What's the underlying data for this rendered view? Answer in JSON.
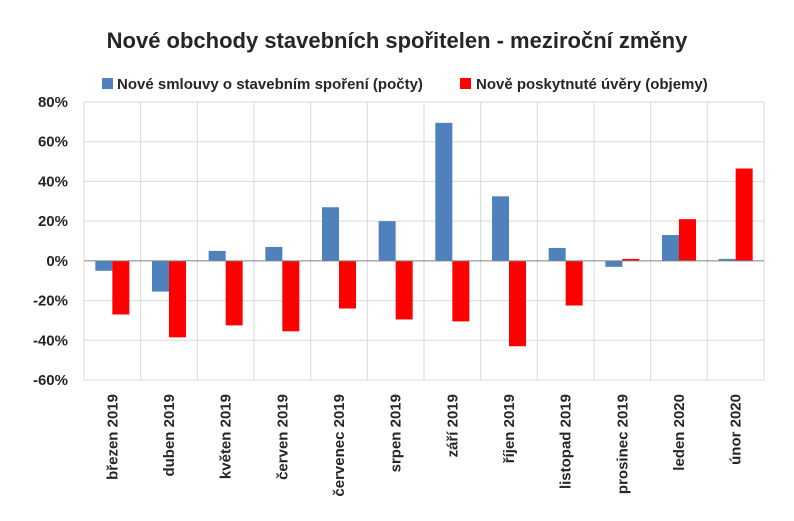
{
  "chart_data": {
    "type": "bar",
    "title": "Nové obchody stavebních spořitelen - meziroční změny",
    "xlabel": "",
    "ylabel": "",
    "categories": [
      "březen 2019",
      "duben 2019",
      "květen 2019",
      "červen 2019",
      "červenec 2019",
      "srpen 2019",
      "září 2019",
      "říjen 2019",
      "listopad 2019",
      "prosinec 2019",
      "leden 2020",
      "únor 2020"
    ],
    "series": [
      {
        "name": "Nové smlouvy o stavebním spoření (počty)",
        "color": "#4f81bd",
        "values": [
          -5,
          -15.5,
          5,
          7,
          27,
          20,
          69.5,
          32.5,
          6.5,
          -3,
          13,
          1
        ]
      },
      {
        "name": "Nově poskytnuté úvěry (objemy)",
        "color": "#ff0000",
        "values": [
          -27,
          -38.5,
          -32.5,
          -35.5,
          -24,
          -29.5,
          -30.5,
          -43,
          -22.5,
          1,
          21,
          46.5
        ]
      }
    ],
    "ylim": [
      -60,
      80
    ],
    "yticks": [
      -60,
      -40,
      -20,
      0,
      20,
      40,
      60,
      80
    ],
    "ytick_labels": [
      "-60%",
      "-40%",
      "-20%",
      "0%",
      "20%",
      "40%",
      "60%",
      "80%"
    ],
    "grid": true,
    "legend_position": "top"
  }
}
